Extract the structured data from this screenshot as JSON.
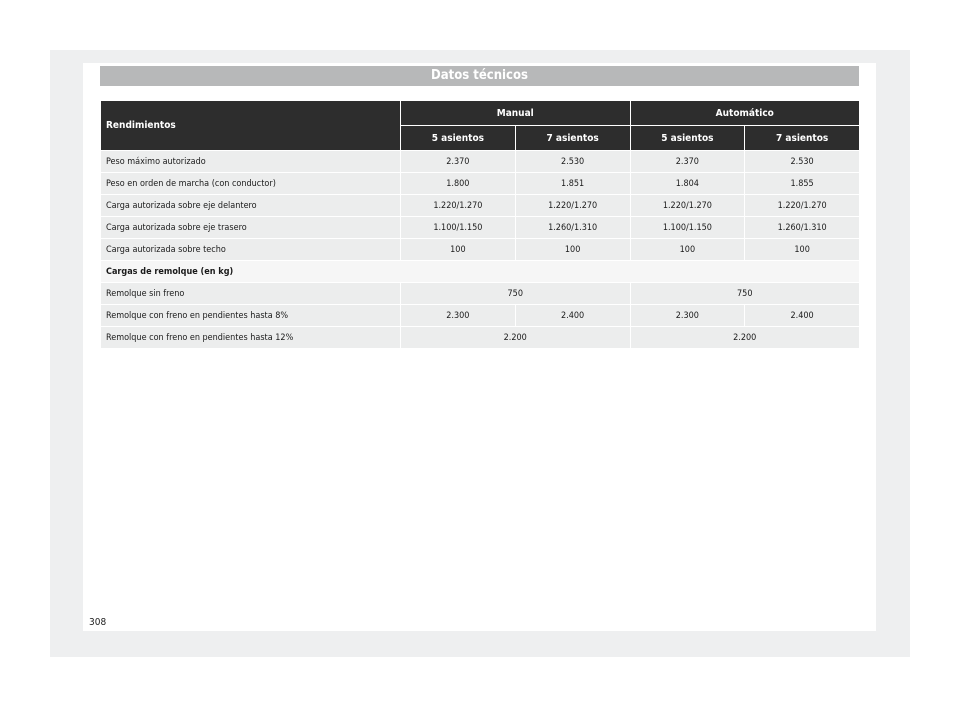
{
  "header": {
    "title": "Datos técnicos"
  },
  "table": {
    "row_header": "Rendimientos",
    "groups": [
      "Manual",
      "Automático"
    ],
    "subheaders": [
      "5 asientos",
      "7 asientos",
      "5 asientos",
      "7 asientos"
    ],
    "rows": [
      {
        "label": "Peso máximo autorizado",
        "values": [
          "2.370",
          "2.530",
          "2.370",
          "2.530"
        ]
      },
      {
        "label": "Peso en orden de marcha (con conductor)",
        "values": [
          "1.800",
          "1.851",
          "1.804",
          "1.855"
        ]
      },
      {
        "label": "Carga autorizada sobre eje delantero",
        "values": [
          "1.220/1.270",
          "1.220/1.270",
          "1.220/1.270",
          "1.220/1.270"
        ]
      },
      {
        "label": "Carga autorizada sobre eje trasero",
        "values": [
          "1.100/1.150",
          "1.260/1.310",
          "1.100/1.150",
          "1.260/1.310"
        ]
      },
      {
        "label": "Carga autorizada sobre techo",
        "values": [
          "100",
          "100",
          "100",
          "100"
        ]
      }
    ],
    "section_label": "Cargas de remolque (en kg)",
    "trailer_rows": [
      {
        "label": "Remolque sin freno",
        "manual": "750",
        "automatic": "750"
      },
      {
        "label": "Remolque con freno en pendientes hasta 8%",
        "values": [
          "2.300",
          "2.400",
          "2.300",
          "2.400"
        ]
      },
      {
        "label": "Remolque con freno en pendientes hasta 12%",
        "manual": "2.200",
        "automatic": "2.200"
      }
    ]
  },
  "footer": {
    "page_number": "308"
  }
}
